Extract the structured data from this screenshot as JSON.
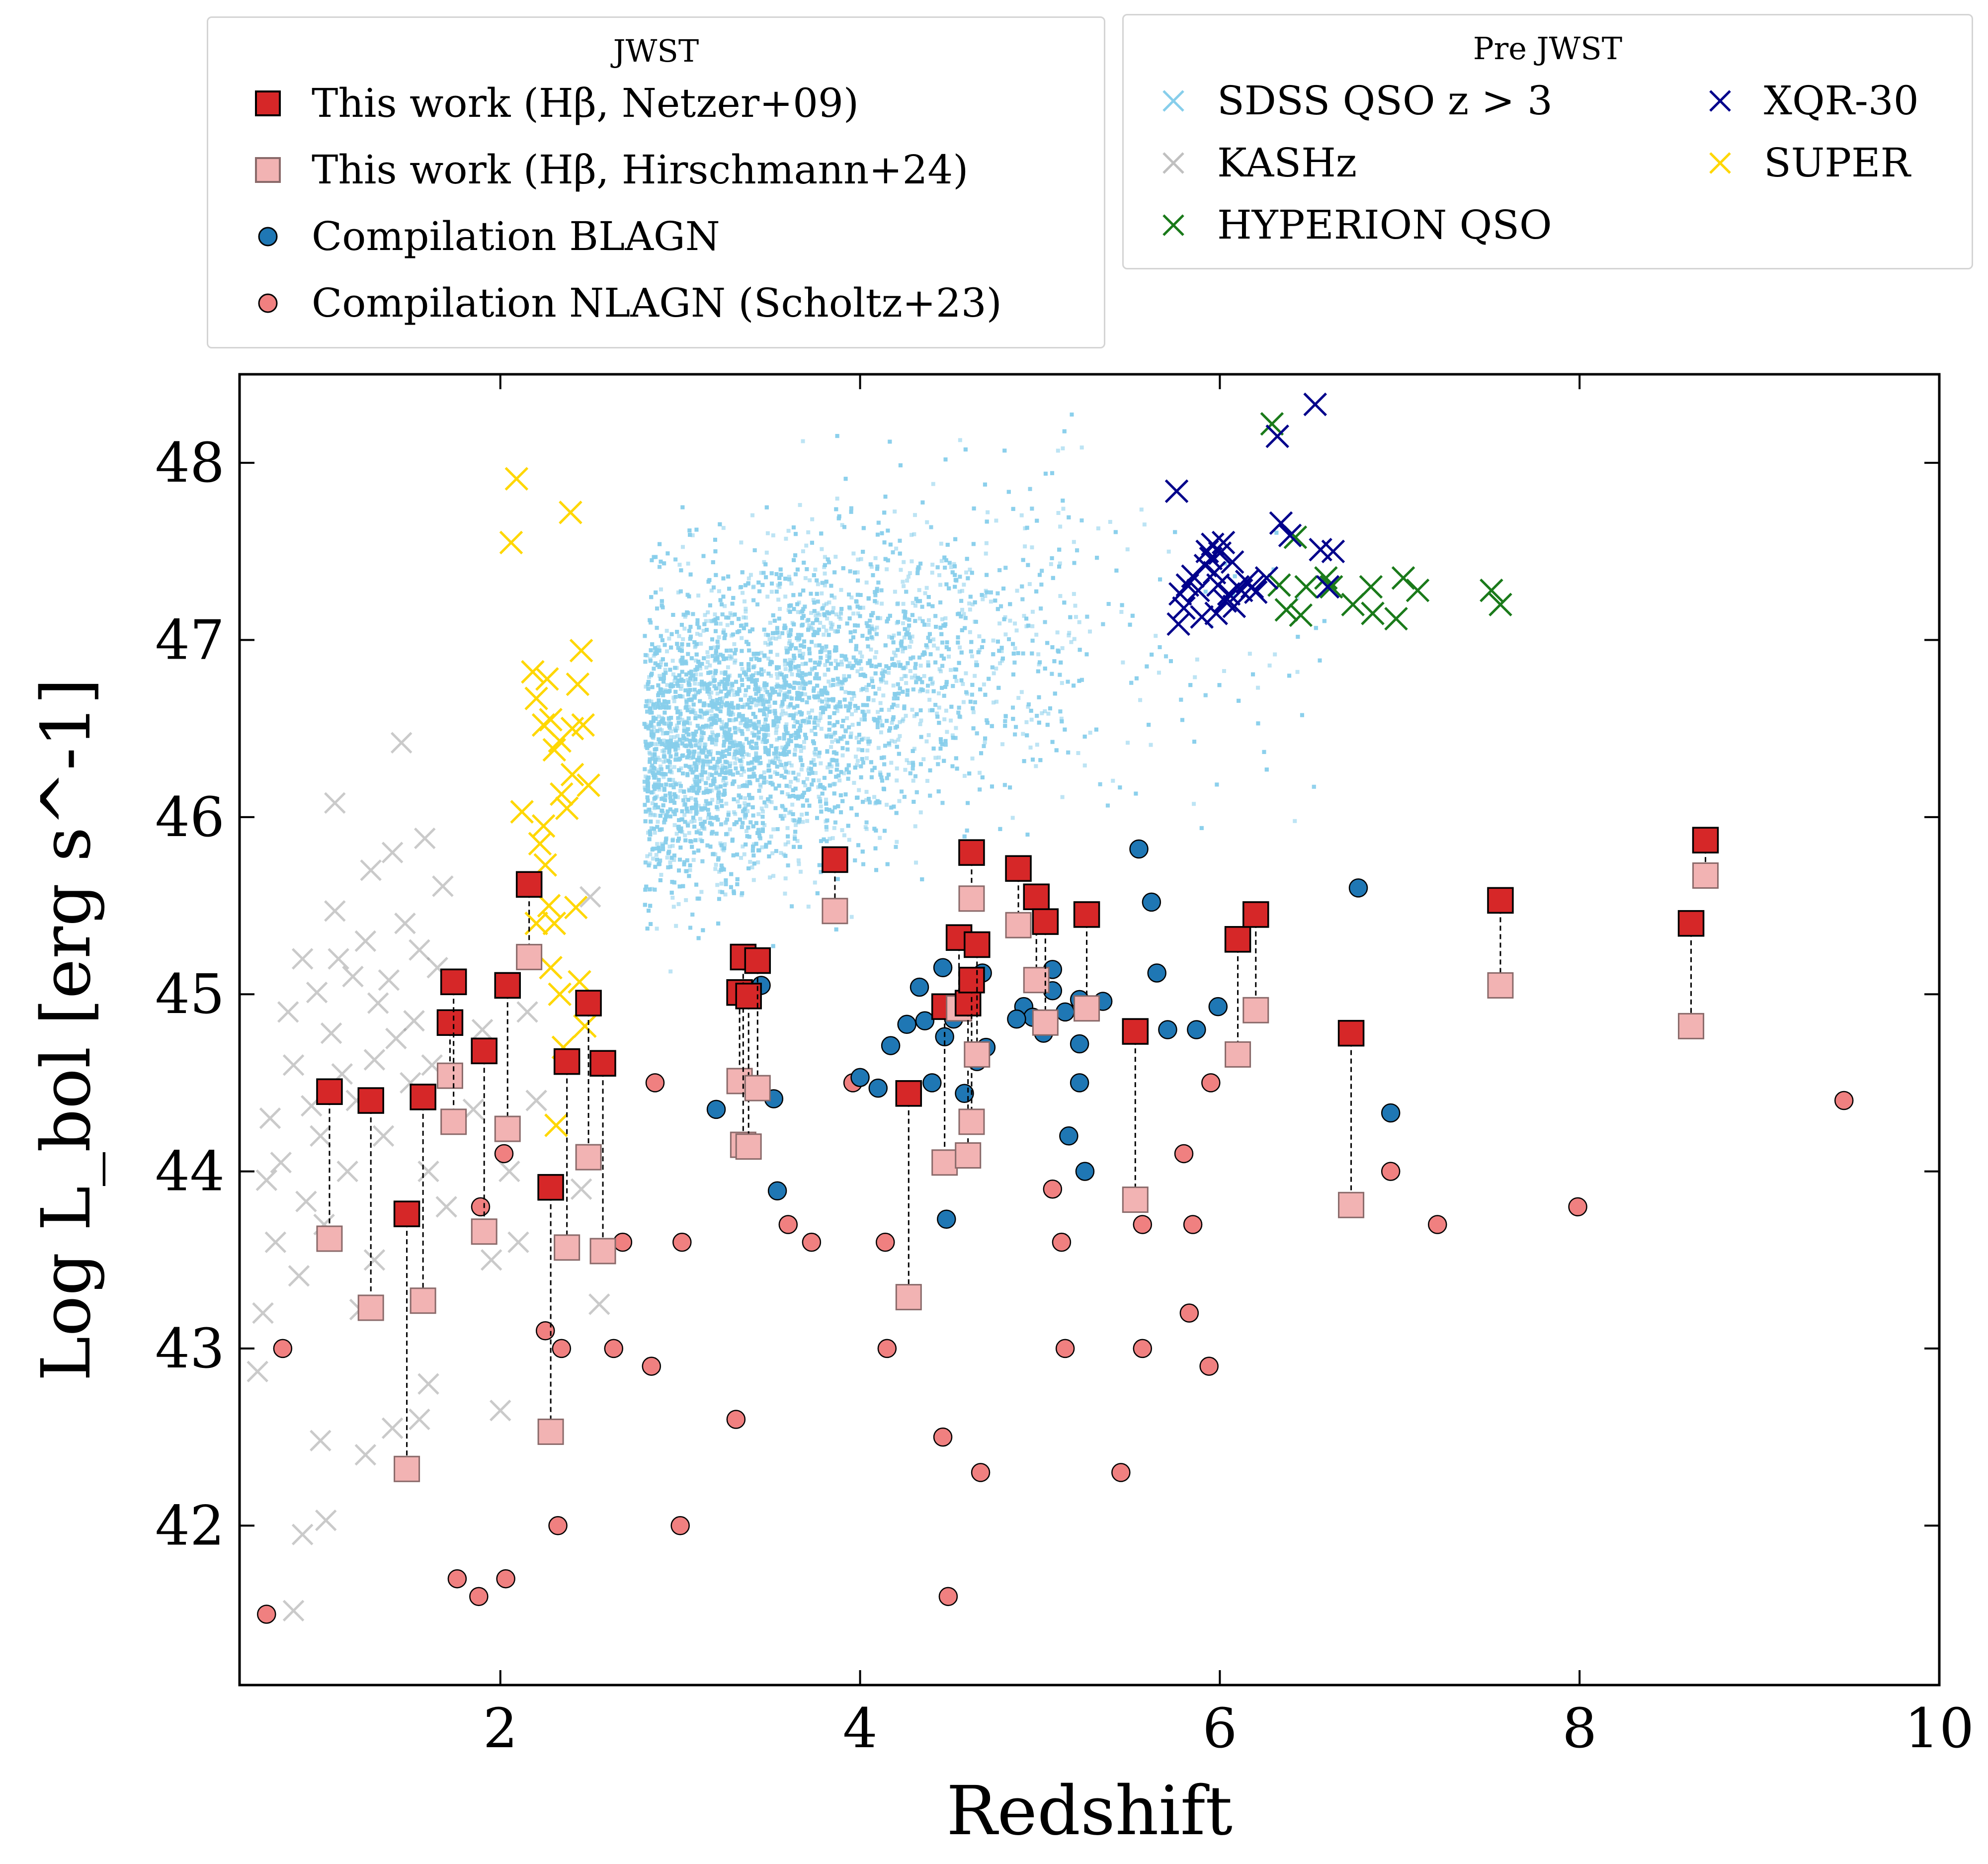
{
  "chart_data": {
    "type": "scatter",
    "xlabel": "Redshift",
    "ylabel": "Log L_bol [erg s^-1]",
    "xlim": [
      0.55,
      10.0
    ],
    "ylim": [
      41.1,
      48.5
    ],
    "x_ticks": [
      2,
      4,
      6,
      8,
      10
    ],
    "y_ticks": [
      42,
      43,
      44,
      45,
      46,
      47,
      48
    ],
    "x_tick_labels": [
      "2",
      "4",
      "6",
      "8",
      "10"
    ],
    "y_tick_labels": [
      "42",
      "43",
      "44",
      "45",
      "46",
      "47",
      "48"
    ],
    "grid": false,
    "legends": [
      {
        "title": "JWST",
        "placement": "above-left",
        "entries": [
          {
            "label": "This work (Hβ, Netzer+09)",
            "marker": "square",
            "color": "#d62728"
          },
          {
            "label": "This work (Hβ, Hirschmann+24)",
            "marker": "square",
            "color": "#f2b3b3"
          },
          {
            "label": "Compilation BLAGN",
            "marker": "circle",
            "color": "#1f77b4"
          },
          {
            "label": "Compilation NLAGN (Scholtz+23)",
            "marker": "circle",
            "color": "#f08080"
          }
        ]
      },
      {
        "title": "Pre JWST",
        "placement": "above-right",
        "entries": [
          {
            "label": "SDSS QSO z > 3",
            "marker": "x",
            "color": "#87ceeb"
          },
          {
            "label": "KASHz",
            "marker": "x",
            "color": "#c0c0c0"
          },
          {
            "label": "HYPERION QSO",
            "marker": "x",
            "color": "#1a7a1a"
          },
          {
            "label": "XQR-30",
            "marker": "x",
            "color": "#00008b"
          },
          {
            "label": "SUPER",
            "marker": "x",
            "color": "#ffd700"
          }
        ]
      }
    ],
    "series": [
      {
        "name": "This work (Hβ, Netzer+09) / (Hβ, Hirschmann+24)",
        "marker": "square-pair",
        "color_netzer": "#d62728",
        "color_hirschmann": "#f2b3b3",
        "pairs": [
          [
            1.05,
            44.45,
            43.62
          ],
          [
            1.28,
            44.4,
            43.23
          ],
          [
            1.48,
            43.76,
            42.32
          ],
          [
            1.57,
            44.42,
            43.27
          ],
          [
            1.72,
            44.84,
            44.54
          ],
          [
            1.74,
            45.07,
            44.28
          ],
          [
            1.91,
            44.68,
            43.66
          ],
          [
            2.04,
            45.05,
            44.24
          ],
          [
            2.16,
            45.62,
            45.21
          ],
          [
            2.28,
            43.91,
            42.53
          ],
          [
            2.37,
            44.62,
            43.57
          ],
          [
            2.49,
            44.95,
            44.08
          ],
          [
            2.57,
            44.61,
            43.55
          ],
          [
            3.33,
            45.01,
            44.51
          ],
          [
            3.35,
            45.21,
            44.15
          ],
          [
            3.38,
            44.99,
            44.14
          ],
          [
            3.43,
            45.19,
            44.47
          ],
          [
            3.86,
            45.76,
            45.47
          ],
          [
            4.27,
            44.44,
            43.29
          ],
          [
            4.47,
            44.93,
            44.05
          ],
          [
            4.55,
            45.32,
            44.92
          ],
          [
            4.6,
            44.95,
            44.09
          ],
          [
            4.62,
            45.08,
            44.28
          ],
          [
            4.62,
            45.8,
            45.54
          ],
          [
            4.65,
            45.28,
            44.66
          ],
          [
            4.88,
            45.71,
            45.39
          ],
          [
            4.98,
            45.55,
            45.08
          ],
          [
            5.03,
            45.41,
            44.84
          ],
          [
            5.26,
            45.45,
            44.92
          ],
          [
            5.53,
            44.79,
            43.84
          ],
          [
            6.1,
            45.31,
            44.66
          ],
          [
            6.2,
            45.45,
            44.91
          ],
          [
            6.73,
            44.78,
            43.81
          ],
          [
            7.56,
            45.53,
            45.05
          ],
          [
            8.62,
            45.4,
            44.82
          ],
          [
            8.7,
            45.87,
            45.67
          ]
        ]
      },
      {
        "name": "Compilation BLAGN",
        "marker": "circle",
        "color": "#1f77b4",
        "points": [
          [
            3.2,
            44.35
          ],
          [
            3.45,
            45.05
          ],
          [
            3.52,
            44.41
          ],
          [
            3.54,
            43.89
          ],
          [
            4.0,
            44.53
          ],
          [
            4.1,
            44.47
          ],
          [
            4.17,
            44.71
          ],
          [
            4.26,
            44.83
          ],
          [
            4.33,
            45.04
          ],
          [
            4.36,
            44.85
          ],
          [
            4.4,
            44.5
          ],
          [
            4.46,
            45.15
          ],
          [
            4.47,
            44.76
          ],
          [
            4.48,
            43.73
          ],
          [
            4.52,
            44.86
          ],
          [
            4.58,
            44.44
          ],
          [
            4.62,
            44.99
          ],
          [
            4.65,
            44.62
          ],
          [
            4.68,
            45.12
          ],
          [
            4.7,
            44.7
          ],
          [
            4.91,
            44.93
          ],
          [
            4.96,
            44.87
          ],
          [
            5.02,
            44.78
          ],
          [
            5.07,
            45.02
          ],
          [
            5.14,
            44.9
          ],
          [
            5.16,
            44.2
          ],
          [
            5.22,
            44.97
          ],
          [
            5.22,
            44.72
          ],
          [
            5.22,
            44.5
          ],
          [
            5.25,
            44.0
          ],
          [
            5.35,
            44.96
          ],
          [
            5.55,
            45.82
          ],
          [
            5.62,
            45.52
          ],
          [
            5.65,
            45.12
          ],
          [
            5.71,
            44.8
          ],
          [
            5.87,
            44.8
          ],
          [
            5.99,
            44.93
          ],
          [
            6.77,
            45.6
          ],
          [
            6.95,
            44.33
          ],
          [
            5.07,
            45.14
          ],
          [
            4.87,
            44.86
          ],
          [
            5.52,
            44.78
          ]
        ]
      },
      {
        "name": "Compilation NLAGN (Scholtz+23)",
        "marker": "circle",
        "color": "#f08080",
        "points": [
          [
            0.7,
            41.5
          ],
          [
            0.79,
            43.0
          ],
          [
            1.76,
            41.7
          ],
          [
            1.88,
            41.6
          ],
          [
            1.89,
            43.8
          ],
          [
            2.02,
            44.1
          ],
          [
            2.03,
            41.7
          ],
          [
            2.25,
            43.1
          ],
          [
            2.32,
            42.0
          ],
          [
            2.34,
            43.0
          ],
          [
            2.63,
            43.0
          ],
          [
            2.68,
            43.6
          ],
          [
            2.84,
            42.9
          ],
          [
            2.86,
            44.5
          ],
          [
            3.0,
            42.0
          ],
          [
            3.01,
            43.6
          ],
          [
            3.31,
            42.6
          ],
          [
            3.6,
            43.7
          ],
          [
            3.73,
            43.6
          ],
          [
            3.96,
            44.5
          ],
          [
            4.14,
            43.6
          ],
          [
            4.15,
            43.0
          ],
          [
            4.46,
            42.5
          ],
          [
            4.49,
            41.6
          ],
          [
            4.67,
            42.3
          ],
          [
            5.07,
            43.9
          ],
          [
            5.12,
            43.6
          ],
          [
            5.14,
            43.0
          ],
          [
            5.45,
            42.3
          ],
          [
            5.57,
            43.7
          ],
          [
            5.57,
            43.0
          ],
          [
            5.8,
            44.1
          ],
          [
            5.83,
            43.2
          ],
          [
            5.85,
            43.7
          ],
          [
            5.95,
            44.5
          ],
          [
            5.94,
            42.9
          ],
          [
            6.95,
            44.0
          ],
          [
            7.21,
            43.7
          ],
          [
            7.99,
            43.8
          ],
          [
            9.47,
            44.4
          ]
        ]
      },
      {
        "name": "XQR-30",
        "marker": "x",
        "color": "#00008b",
        "points": [
          [
            5.76,
            47.84
          ],
          [
            5.77,
            47.09
          ],
          [
            5.78,
            47.26
          ],
          [
            5.8,
            47.18
          ],
          [
            5.82,
            47.31
          ],
          [
            5.85,
            47.36
          ],
          [
            5.88,
            47.28
          ],
          [
            5.9,
            47.13
          ],
          [
            5.92,
            47.42
          ],
          [
            5.93,
            47.5
          ],
          [
            5.95,
            47.46
          ],
          [
            5.96,
            47.54
          ],
          [
            5.97,
            47.38
          ],
          [
            5.98,
            47.15
          ],
          [
            5.99,
            47.31
          ],
          [
            6.0,
            47.49
          ],
          [
            6.02,
            47.55
          ],
          [
            6.03,
            47.22
          ],
          [
            6.05,
            47.26
          ],
          [
            6.07,
            47.44
          ],
          [
            6.08,
            47.19
          ],
          [
            6.1,
            47.3
          ],
          [
            6.12,
            47.28
          ],
          [
            6.15,
            47.33
          ],
          [
            6.18,
            47.3
          ],
          [
            6.2,
            47.27
          ],
          [
            6.26,
            47.35
          ],
          [
            6.32,
            48.15
          ],
          [
            6.34,
            47.66
          ],
          [
            6.39,
            47.59
          ],
          [
            6.53,
            48.33
          ],
          [
            6.56,
            47.51
          ],
          [
            6.6,
            47.3
          ],
          [
            6.63,
            47.5
          ]
        ]
      },
      {
        "name": "HYPERION QSO",
        "marker": "x",
        "color": "#1a7a1a",
        "points": [
          [
            6.29,
            48.22
          ],
          [
            6.33,
            47.31
          ],
          [
            6.37,
            47.17
          ],
          [
            6.42,
            47.58
          ],
          [
            6.45,
            47.14
          ],
          [
            6.48,
            47.3
          ],
          [
            6.59,
            47.35
          ],
          [
            6.62,
            47.3
          ],
          [
            6.74,
            47.2
          ],
          [
            6.84,
            47.3
          ],
          [
            6.85,
            47.15
          ],
          [
            6.98,
            47.12
          ],
          [
            7.02,
            47.35
          ],
          [
            7.1,
            47.28
          ],
          [
            7.51,
            47.28
          ],
          [
            7.56,
            47.2
          ]
        ]
      },
      {
        "name": "SUPER",
        "marker": "x",
        "color": "#ffd700",
        "points": [
          [
            2.06,
            47.55
          ],
          [
            2.09,
            47.91
          ],
          [
            2.39,
            47.72
          ],
          [
            2.12,
            46.03
          ],
          [
            2.18,
            46.82
          ],
          [
            2.2,
            46.67
          ],
          [
            2.24,
            46.52
          ],
          [
            2.26,
            46.78
          ],
          [
            2.28,
            46.55
          ],
          [
            2.3,
            46.38
          ],
          [
            2.33,
            46.43
          ],
          [
            2.37,
            46.05
          ],
          [
            2.4,
            46.5
          ],
          [
            2.43,
            46.75
          ],
          [
            2.45,
            46.94
          ],
          [
            2.46,
            46.52
          ],
          [
            2.49,
            46.18
          ],
          [
            2.22,
            45.85
          ],
          [
            2.25,
            45.73
          ],
          [
            2.27,
            45.5
          ],
          [
            2.3,
            45.4
          ],
          [
            2.28,
            45.15
          ],
          [
            2.33,
            45.0
          ],
          [
            2.42,
            45.49
          ],
          [
            2.44,
            45.07
          ],
          [
            2.47,
            44.82
          ],
          [
            2.31,
            44.26
          ],
          [
            2.24,
            45.95
          ],
          [
            2.34,
            46.13
          ],
          [
            2.4,
            46.24
          ],
          [
            2.2,
            45.4
          ],
          [
            2.35,
            44.7
          ]
        ]
      },
      {
        "name": "KASHz",
        "marker": "x",
        "color": "#c0c0c0",
        "points": [
          [
            0.65,
            42.87
          ],
          [
            0.68,
            43.2
          ],
          [
            0.7,
            43.95
          ],
          [
            0.72,
            44.3
          ],
          [
            0.75,
            43.6
          ],
          [
            0.78,
            44.05
          ],
          [
            0.82,
            44.9
          ],
          [
            0.85,
            44.6
          ],
          [
            0.88,
            43.41
          ],
          [
            0.9,
            45.2
          ],
          [
            0.9,
            41.95
          ],
          [
            0.92,
            43.83
          ],
          [
            0.95,
            44.37
          ],
          [
            0.98,
            45.01
          ],
          [
            1.0,
            44.2
          ],
          [
            1.02,
            43.7
          ],
          [
            1.0,
            42.48
          ],
          [
            1.03,
            42.03
          ],
          [
            1.06,
            44.78
          ],
          [
            1.08,
            45.47
          ],
          [
            1.08,
            46.08
          ],
          [
            1.1,
            45.2
          ],
          [
            1.12,
            44.55
          ],
          [
            1.15,
            44.0
          ],
          [
            1.18,
            45.1
          ],
          [
            1.2,
            44.4
          ],
          [
            1.22,
            43.22
          ],
          [
            1.25,
            45.3
          ],
          [
            1.28,
            45.7
          ],
          [
            1.3,
            44.63
          ],
          [
            1.32,
            44.95
          ],
          [
            1.35,
            44.2
          ],
          [
            1.38,
            45.08
          ],
          [
            1.4,
            45.8
          ],
          [
            1.42,
            44.75
          ],
          [
            1.45,
            46.42
          ],
          [
            1.47,
            45.4
          ],
          [
            1.5,
            44.5
          ],
          [
            1.52,
            44.85
          ],
          [
            1.55,
            45.25
          ],
          [
            1.58,
            45.88
          ],
          [
            1.6,
            44.0
          ],
          [
            1.62,
            44.6
          ],
          [
            1.65,
            45.15
          ],
          [
            1.68,
            45.61
          ],
          [
            1.7,
            43.8
          ],
          [
            1.85,
            44.35
          ],
          [
            1.9,
            44.8
          ],
          [
            1.95,
            43.5
          ],
          [
            2.0,
            42.65
          ],
          [
            2.05,
            44.0
          ],
          [
            2.1,
            43.6
          ],
          [
            2.15,
            44.9
          ],
          [
            2.2,
            44.4
          ],
          [
            2.45,
            43.9
          ],
          [
            2.5,
            45.55
          ],
          [
            2.55,
            43.25
          ],
          [
            0.85,
            41.52
          ],
          [
            1.25,
            42.4
          ],
          [
            1.55,
            42.6
          ],
          [
            1.4,
            42.55
          ],
          [
            1.3,
            43.5
          ],
          [
            1.6,
            42.8
          ]
        ]
      },
      {
        "name": "SDSS QSO z > 3",
        "marker": "x",
        "color": "#87ceeb",
        "distribution": "dense cloud",
        "x_range": [
          2.8,
          6.5
        ],
        "y_range": [
          45.2,
          48.4
        ]
      }
    ]
  }
}
